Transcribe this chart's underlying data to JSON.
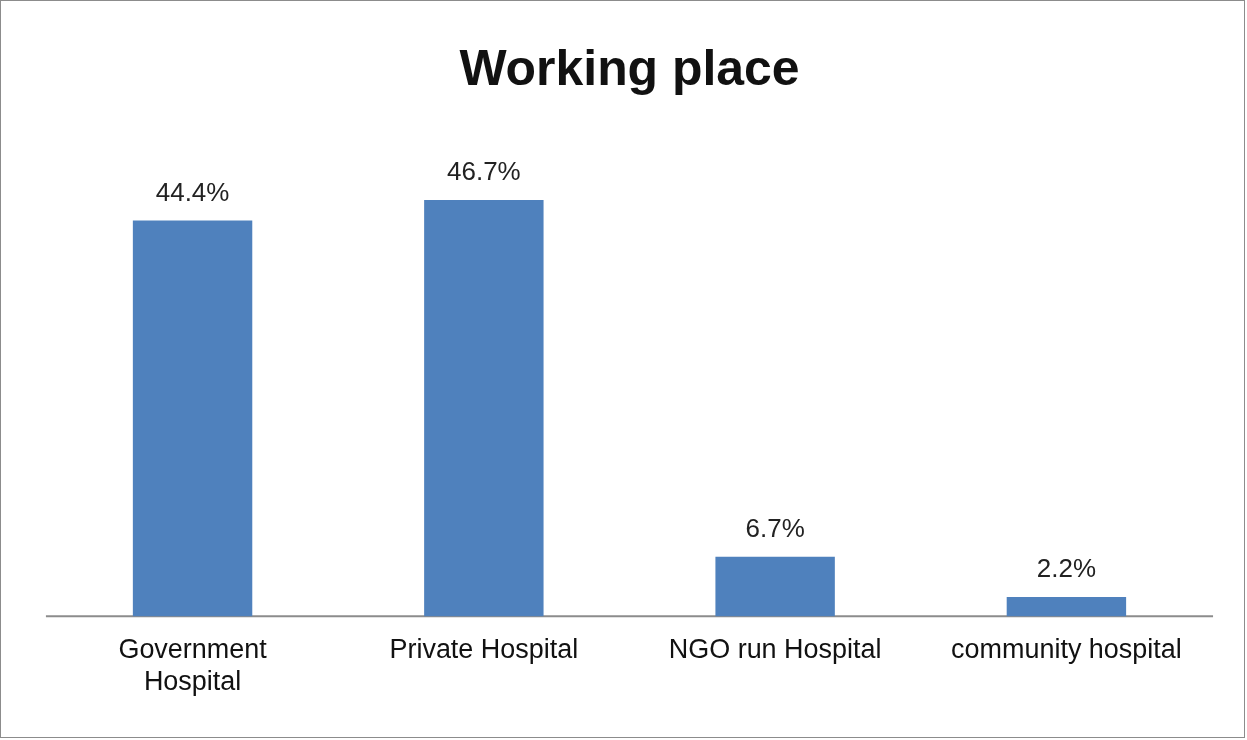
{
  "chart_data": {
    "type": "bar",
    "title": "Working place",
    "categories": [
      "Government Hospital",
      "Private Hospital",
      "NGO run Hospital",
      "community hospital"
    ],
    "values": [
      44.4,
      46.7,
      6.7,
      2.2
    ],
    "value_labels": [
      "44.4%",
      "46.7%",
      "6.7%",
      "2.2%"
    ],
    "color": "#4f81bd",
    "legend": false
  }
}
